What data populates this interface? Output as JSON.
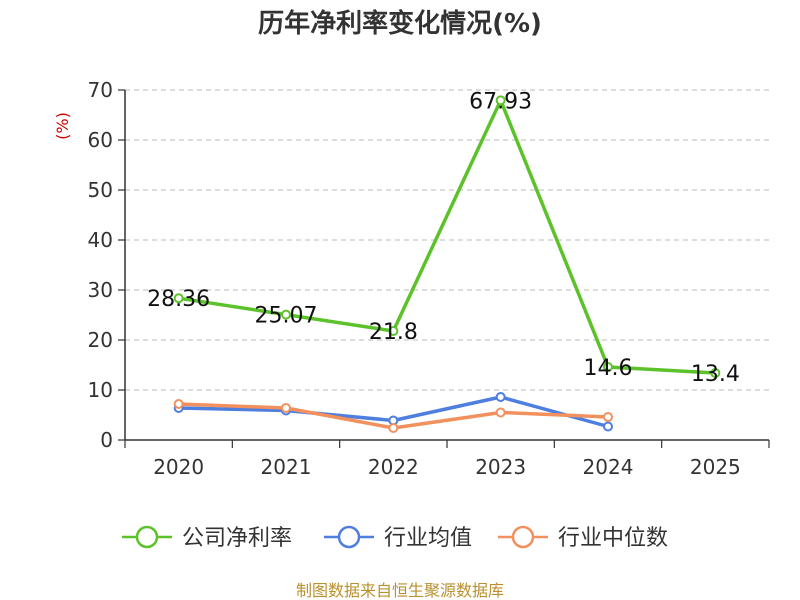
{
  "colors": {
    "company": "#5cc22a",
    "industry_avg": "#4e7fde",
    "industry_median": "#f2905e",
    "grid": "#c8c8c8",
    "axis": "#333333"
  },
  "chart_data": {
    "type": "line",
    "title": "历年净利率变化情况(%)",
    "ylabel": "(%)",
    "xlabel": "",
    "categories": [
      "2020",
      "2021",
      "2022",
      "2023",
      "2024",
      "2025"
    ],
    "ylim": [
      0,
      70
    ],
    "yticks": [
      0,
      10,
      20,
      30,
      40,
      50,
      60,
      70
    ],
    "grid": true,
    "legend_position": "bottom",
    "series": [
      {
        "name": "公司净利率",
        "color_key": "company",
        "values": [
          28.36,
          25.07,
          21.8,
          67.93,
          14.6,
          13.4
        ],
        "labels": [
          "28.36",
          "25.07",
          "21.8",
          "67.93",
          "14.6",
          "13.4"
        ]
      },
      {
        "name": "行业均值",
        "color_key": "industry_avg",
        "values": [
          6.4,
          5.9,
          3.9,
          8.6,
          2.7,
          null
        ]
      },
      {
        "name": "行业中位数",
        "color_key": "industry_median",
        "values": [
          7.2,
          6.4,
          2.4,
          5.5,
          4.6,
          null
        ]
      }
    ]
  },
  "footer": {
    "source": "制图数据来自恒生聚源数据库"
  }
}
